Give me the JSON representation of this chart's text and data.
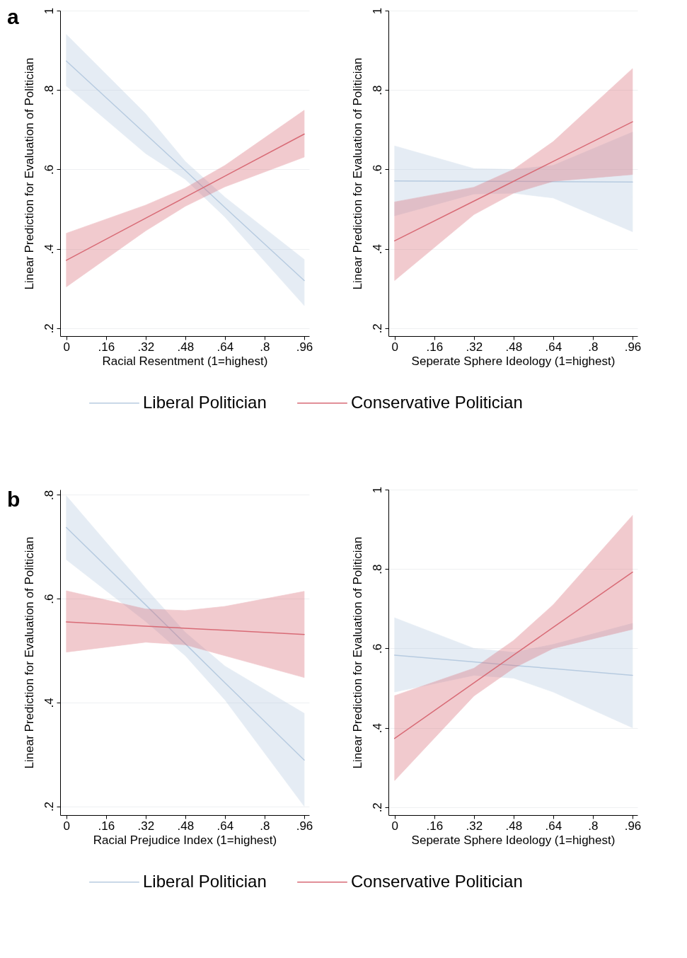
{
  "chart_data": [
    {
      "type": "line",
      "annotations": [
        "a"
      ],
      "xlabel": "Racial Resentment (1=highest)",
      "ylabel": "Linear Prediction for Evaluation of Politician",
      "xlim": [
        -0.025,
        0.98
      ],
      "ylim": [
        0.18,
        1.0
      ],
      "xticks": [
        {
          "value": 0,
          "label": "0"
        },
        {
          "value": 0.16,
          "label": ".16"
        },
        {
          "value": 0.32,
          "label": ".32"
        },
        {
          "value": 0.48,
          "label": ".48"
        },
        {
          "value": 0.64,
          "label": ".64"
        },
        {
          "value": 0.8,
          "label": ".8"
        },
        {
          "value": 0.96,
          "label": ".96"
        }
      ],
      "yticks": [
        {
          "value": 0.2,
          "label": ".2"
        },
        {
          "value": 0.4,
          "label": ".4"
        },
        {
          "value": 0.6,
          "label": ".6"
        },
        {
          "value": 0.8,
          "label": ".8"
        },
        {
          "value": 1,
          "label": "1"
        }
      ],
      "grid": "y",
      "legend": "bottom",
      "x": [
        0,
        0.32,
        0.48,
        0.64,
        0.96
      ],
      "series": [
        {
          "name": "Liberal Politician",
          "color": "#b7cbe0",
          "values": [
            0.873,
            0.689,
            0.597,
            0.504,
            0.32
          ],
          "lower": [
            0.81,
            0.64,
            0.575,
            0.48,
            0.257
          ],
          "upper": [
            0.94,
            0.74,
            0.62,
            0.53,
            0.373
          ]
        },
        {
          "name": "Conservative Politician",
          "color": "#d86b76",
          "values": [
            0.371,
            0.477,
            0.53,
            0.583,
            0.689
          ],
          "lower": [
            0.304,
            0.445,
            0.507,
            0.556,
            0.631
          ],
          "upper": [
            0.439,
            0.51,
            0.553,
            0.61,
            0.749
          ]
        }
      ]
    },
    {
      "type": "line",
      "xlabel": "Seperate Sphere Ideology (1=highest)",
      "ylabel": "Linear Prediction for Evaluation of Politician",
      "xlim": [
        -0.025,
        0.98
      ],
      "ylim": [
        0.18,
        1.0
      ],
      "xticks": [
        0,
        {
          "value": 0.16,
          "label": ".16"
        },
        {
          "value": 0.32,
          "label": ".32"
        },
        {
          "value": 0.48,
          "label": ".48"
        },
        {
          "value": 0.64,
          "label": ".64"
        },
        {
          "value": 0.8,
          "label": ".8"
        },
        {
          "value": 0.96,
          "label": ".96"
        }
      ],
      "yticks": [
        {
          "value": 0.2,
          "label": ".2"
        },
        {
          "value": 0.4,
          "label": ".4"
        },
        {
          "value": 0.6,
          "label": ".6"
        },
        {
          "value": 0.8,
          "label": ".8"
        },
        1
      ],
      "grid": "y",
      "x": [
        0,
        0.32,
        0.48,
        0.64,
        0.96
      ],
      "series": [
        {
          "color": "#b7cbe0",
          "values": [
            0.571,
            0.57,
            0.57,
            0.569,
            0.568
          ],
          "lower": [
            0.483,
            0.538,
            0.54,
            0.528,
            0.443
          ],
          "upper": [
            0.659,
            0.602,
            0.6,
            0.61,
            0.694
          ]
        },
        {
          "color": "#d86b76",
          "values": [
            0.42,
            0.52,
            0.57,
            0.62,
            0.72
          ],
          "lower": [
            0.32,
            0.486,
            0.54,
            0.57,
            0.587
          ],
          "upper": [
            0.518,
            0.555,
            0.6,
            0.67,
            0.854
          ]
        }
      ]
    },
    {
      "type": "line",
      "annotations": [
        "b"
      ],
      "xlabel": "Racial Prejudice Index (1=highest)",
      "ylabel": "Linear Prediction for Evaluation of Politician",
      "xlim": [
        -0.025,
        0.98
      ],
      "ylim": [
        0.183,
        0.81
      ],
      "xticks": [
        {
          "value": 0,
          "label": "0"
        },
        {
          "value": 0.16,
          "label": ".16"
        },
        {
          "value": 0.32,
          "label": ".32"
        },
        {
          "value": 0.48,
          "label": ".48"
        },
        {
          "value": 0.64,
          "label": ".64"
        },
        {
          "value": 0.8,
          "label": ".8"
        },
        {
          "value": 0.96,
          "label": ".96"
        }
      ],
      "yticks": [
        {
          "value": 0.2,
          "label": ".2"
        },
        {
          "value": 0.4,
          "label": ".4"
        },
        {
          "value": 0.6,
          "label": ".6"
        },
        {
          "value": 0.8,
          "label": ".8"
        }
      ],
      "grid": "y",
      "legend": "bottom",
      "x": [
        0,
        0.32,
        0.48,
        0.64,
        0.96
      ],
      "series": [
        {
          "name": "Liberal Politician",
          "color": "#b7cbe0",
          "values": [
            0.737,
            0.588,
            0.513,
            0.438,
            0.289
          ],
          "lower": [
            0.675,
            0.556,
            0.49,
            0.405,
            0.2
          ],
          "upper": [
            0.798,
            0.62,
            0.535,
            0.47,
            0.379
          ]
        },
        {
          "name": "Conservative Politician",
          "color": "#d86b76",
          "values": [
            0.555,
            0.547,
            0.543,
            0.539,
            0.531
          ],
          "lower": [
            0.497,
            0.516,
            0.511,
            0.49,
            0.448
          ],
          "upper": [
            0.615,
            0.58,
            0.577,
            0.585,
            0.614
          ]
        }
      ]
    },
    {
      "type": "line",
      "xlabel": "Seperate Sphere Ideology (1=highest)",
      "ylabel": "Linear Prediction for Evaluation of Politician",
      "xlim": [
        -0.025,
        0.98
      ],
      "ylim": [
        0.18,
        1.0
      ],
      "xticks": [
        0,
        {
          "value": 0.16,
          "label": ".16"
        },
        {
          "value": 0.32,
          "label": ".32"
        },
        {
          "value": 0.48,
          "label": ".48"
        },
        {
          "value": 0.64,
          "label": ".64"
        },
        {
          "value": 0.8,
          "label": ".8"
        },
        {
          "value": 0.96,
          "label": ".96"
        }
      ],
      "yticks": [
        {
          "value": 0.2,
          "label": ".2"
        },
        {
          "value": 0.4,
          "label": ".4"
        },
        {
          "value": 0.6,
          "label": ".6"
        },
        {
          "value": 0.8,
          "label": ".8"
        },
        1
      ],
      "grid": "y",
      "x": [
        0,
        0.32,
        0.48,
        0.64,
        0.96
      ],
      "series": [
        {
          "color": "#b7cbe0",
          "values": [
            0.583,
            0.566,
            0.557,
            0.549,
            0.532
          ],
          "lower": [
            0.49,
            0.532,
            0.525,
            0.49,
            0.4
          ],
          "upper": [
            0.677,
            0.6,
            0.59,
            0.61,
            0.663
          ]
        },
        {
          "color": "#d86b76",
          "values": [
            0.373,
            0.513,
            0.583,
            0.653,
            0.792
          ],
          "lower": [
            0.267,
            0.48,
            0.55,
            0.6,
            0.648
          ],
          "upper": [
            0.481,
            0.55,
            0.62,
            0.71,
            0.935
          ]
        }
      ]
    }
  ]
}
